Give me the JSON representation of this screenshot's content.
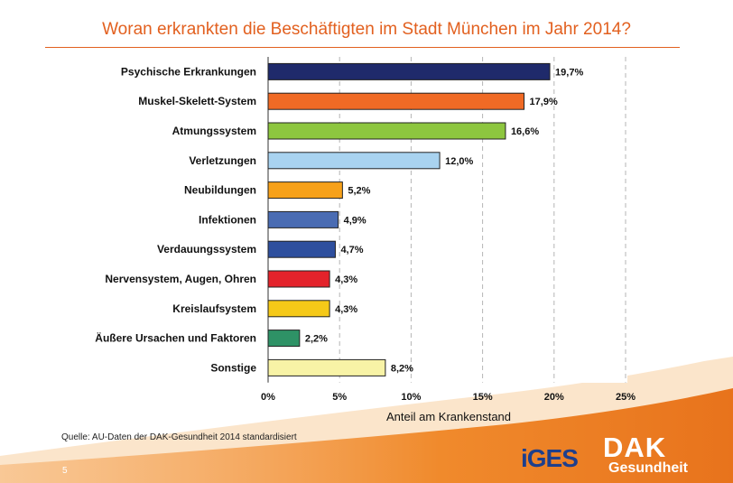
{
  "title": "Woran erkrankten die Beschäftigten im Stadt München im Jahr 2014?",
  "source": "Quelle: AU-Daten der DAK-Gesundheit 2014 standardisiert",
  "page_number": "5",
  "logos": {
    "iges": "iGES",
    "dak_line1": "DAK",
    "dak_line2": "Gesundheit"
  },
  "chart_data": {
    "type": "bar",
    "orientation": "horizontal",
    "title": "Woran erkrankten die Beschäftigten im Stadt München im Jahr 2014?",
    "xlabel": "Anteil am Krankenstand",
    "ylabel": "",
    "xlim": [
      0,
      25
    ],
    "x_ticks": [
      0,
      5,
      10,
      15,
      20,
      25
    ],
    "x_tick_labels": [
      "0%",
      "5%",
      "10%",
      "15%",
      "20%",
      "25%"
    ],
    "grid": "vertical dashed",
    "categories": [
      "Psychische Erkrankungen",
      "Muskel-Skelett-System",
      "Atmungssystem",
      "Verletzungen",
      "Neubildungen",
      "Infektionen",
      "Verdauungssystem",
      "Nervensystem, Augen, Ohren",
      "Kreislaufsystem",
      "Äußere Ursachen und Faktoren",
      "Sonstige"
    ],
    "values": [
      19.7,
      17.9,
      16.6,
      12.0,
      5.2,
      4.9,
      4.7,
      4.3,
      4.3,
      2.2,
      8.2
    ],
    "value_labels": [
      "19,7%",
      "17,9%",
      "16,6%",
      "12,0%",
      "5,2%",
      "4,9%",
      "4,7%",
      "4,3%",
      "4,3%",
      "2,2%",
      "8,2%"
    ],
    "colors": [
      "#1f2a6b",
      "#f06a25",
      "#8dc63f",
      "#a9d3f0",
      "#f7a11a",
      "#4a6cb3",
      "#2e4f9e",
      "#e3232b",
      "#f5c918",
      "#2e9266",
      "#f8f3a6"
    ]
  }
}
